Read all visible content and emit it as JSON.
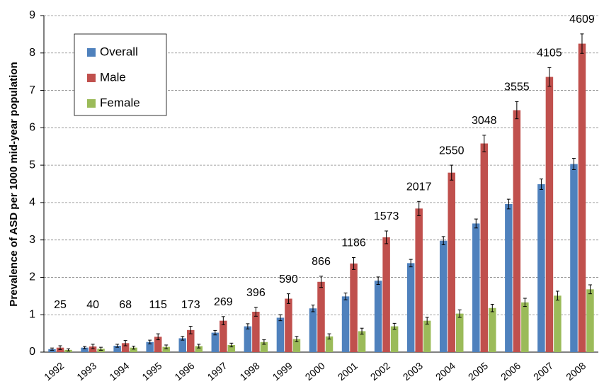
{
  "chart_data": {
    "type": "bar",
    "y_label": "Prevalence of ASD per 1000 mid-year population",
    "categories": [
      "1992",
      "1993",
      "1994",
      "1995",
      "1996",
      "1997",
      "1998",
      "1999",
      "2000",
      "2001",
      "2002",
      "2003",
      "2004",
      "2005",
      "2006",
      "2007",
      "2008"
    ],
    "series": [
      {
        "name": "Overall",
        "color": "#4f81bd",
        "values": [
          0.08,
          0.12,
          0.17,
          0.27,
          0.37,
          0.52,
          0.69,
          0.92,
          1.17,
          1.49,
          1.91,
          2.38,
          2.98,
          3.44,
          3.96,
          4.49,
          5.03
        ],
        "errors": [
          0.03,
          0.03,
          0.04,
          0.05,
          0.05,
          0.06,
          0.07,
          0.08,
          0.09,
          0.09,
          0.1,
          0.1,
          0.11,
          0.12,
          0.13,
          0.14,
          0.15
        ]
      },
      {
        "name": "Male",
        "color": "#c0504d",
        "values": [
          0.12,
          0.15,
          0.24,
          0.41,
          0.59,
          0.84,
          1.08,
          1.43,
          1.88,
          2.37,
          3.07,
          3.84,
          4.8,
          5.58,
          6.47,
          7.36,
          8.25
        ],
        "errors": [
          0.05,
          0.06,
          0.07,
          0.08,
          0.1,
          0.11,
          0.12,
          0.13,
          0.15,
          0.16,
          0.17,
          0.19,
          0.2,
          0.22,
          0.23,
          0.25,
          0.26
        ]
      },
      {
        "name": "Female",
        "color": "#9bbb59",
        "values": [
          0.06,
          0.09,
          0.12,
          0.14,
          0.16,
          0.19,
          0.27,
          0.35,
          0.42,
          0.56,
          0.69,
          0.84,
          1.03,
          1.18,
          1.33,
          1.51,
          1.68
        ],
        "errors": [
          0.03,
          0.04,
          0.04,
          0.05,
          0.05,
          0.05,
          0.06,
          0.07,
          0.07,
          0.08,
          0.08,
          0.09,
          0.1,
          0.1,
          0.11,
          0.12,
          0.12
        ]
      }
    ],
    "annotations": [
      25,
      40,
      68,
      115,
      173,
      269,
      396,
      590,
      866,
      1186,
      1573,
      2017,
      2550,
      3048,
      3555,
      4105,
      4609
    ],
    "ylim": [
      0,
      9
    ],
    "yticks": [
      0,
      1,
      2,
      3,
      4,
      5,
      6,
      7,
      8,
      9
    ],
    "grid": true,
    "legend": "upper-left"
  }
}
